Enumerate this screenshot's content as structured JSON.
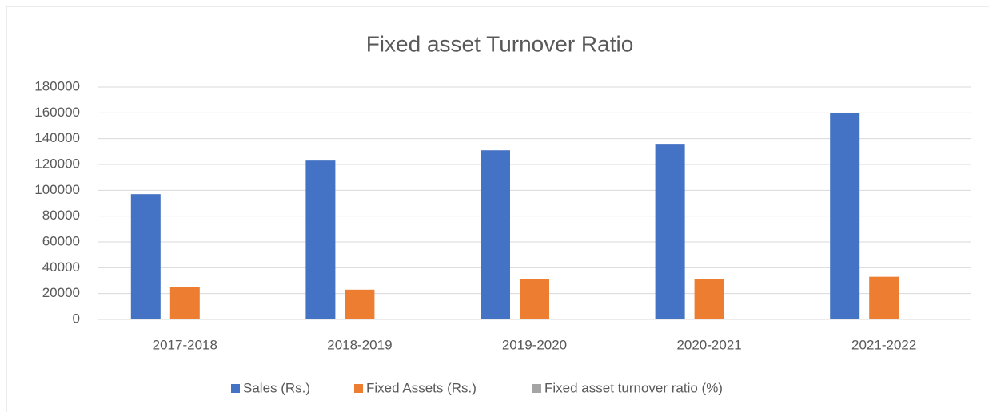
{
  "chart_data": {
    "type": "bar",
    "title": "Fixed asset Turnover Ratio",
    "categories": [
      "2017-2018",
      "2018-2019",
      "2019-2020",
      "2020-2021",
      "2021-2022"
    ],
    "series": [
      {
        "name": "Sales (Rs.)",
        "color": "#4472c4",
        "values": [
          97000,
          123000,
          131000,
          136000,
          160000
        ]
      },
      {
        "name": "Fixed Assets (Rs.)",
        "color": "#ed7d31",
        "values": [
          25000,
          23000,
          31000,
          31500,
          33000
        ]
      },
      {
        "name": "Fixed asset turnover ratio (%)",
        "color": "#a5a5a5",
        "values": [
          3.9,
          5.3,
          4.2,
          4.3,
          4.8
        ]
      }
    ],
    "ylim": [
      0,
      180000
    ],
    "yticks": [
      0,
      20000,
      40000,
      60000,
      80000,
      100000,
      120000,
      140000,
      160000,
      180000
    ],
    "grid": true,
    "legend": "bottom"
  }
}
